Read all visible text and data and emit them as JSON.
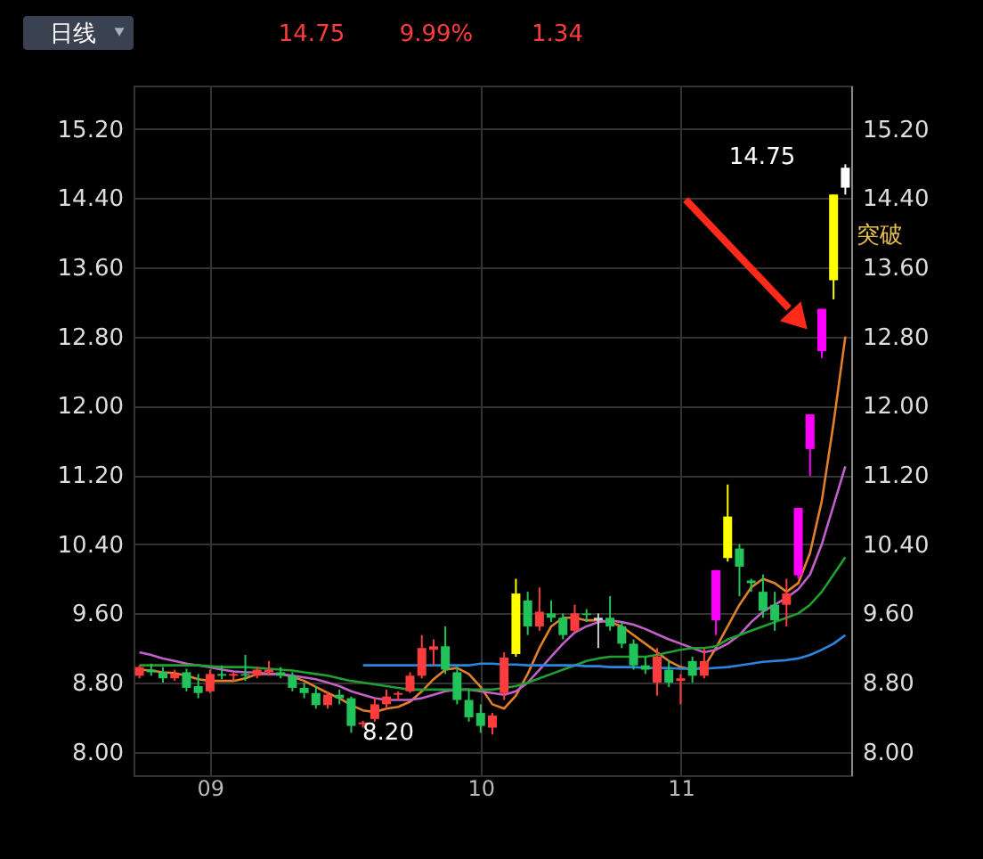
{
  "chart_data": {
    "type": "candlestick",
    "categories": [
      null,
      null,
      null,
      null,
      null,
      null,
      "09",
      null,
      null,
      null,
      null,
      null,
      null,
      null,
      null,
      null,
      null,
      null,
      null,
      null,
      null,
      null,
      null,
      null,
      null,
      null,
      null,
      null,
      null,
      "10",
      null,
      null,
      null,
      null,
      null,
      null,
      null,
      null,
      null,
      null,
      null,
      null,
      null,
      null,
      null,
      null,
      "11",
      null,
      null,
      null,
      null,
      null,
      null,
      null,
      null,
      null,
      null,
      null,
      null,
      null,
      null
    ],
    "ohlc": [
      [
        8.88,
        9.0,
        8.85,
        8.98
      ],
      [
        8.95,
        9.02,
        8.88,
        8.92
      ],
      [
        8.92,
        8.98,
        8.8,
        8.85
      ],
      [
        8.85,
        8.95,
        8.82,
        8.9
      ],
      [
        8.92,
        8.96,
        8.7,
        8.74
      ],
      [
        8.76,
        8.9,
        8.62,
        8.68
      ],
      [
        8.7,
        8.95,
        8.68,
        8.9
      ],
      [
        8.9,
        9.0,
        8.84,
        8.88
      ],
      [
        8.88,
        8.92,
        8.82,
        8.9
      ],
      [
        8.9,
        9.12,
        8.82,
        8.88
      ],
      [
        8.88,
        8.98,
        8.85,
        8.95
      ],
      [
        8.95,
        9.05,
        8.88,
        8.92
      ],
      [
        8.92,
        8.98,
        8.85,
        8.88
      ],
      [
        8.88,
        8.92,
        8.7,
        8.74
      ],
      [
        8.74,
        8.8,
        8.62,
        8.68
      ],
      [
        8.68,
        8.76,
        8.5,
        8.54
      ],
      [
        8.54,
        8.7,
        8.5,
        8.66
      ],
      [
        8.66,
        8.72,
        8.55,
        8.62
      ],
      [
        8.62,
        8.64,
        8.22,
        8.3
      ],
      [
        8.32,
        8.36,
        8.28,
        8.34
      ],
      [
        8.38,
        8.62,
        8.35,
        8.55
      ],
      [
        8.55,
        8.72,
        8.5,
        8.64
      ],
      [
        8.66,
        8.7,
        8.6,
        8.68
      ],
      [
        8.7,
        8.92,
        8.68,
        8.88
      ],
      [
        8.88,
        9.35,
        8.85,
        9.2
      ],
      [
        9.18,
        9.3,
        9.0,
        9.22
      ],
      [
        9.22,
        9.45,
        8.9,
        8.95
      ],
      [
        8.92,
        8.98,
        8.55,
        8.6
      ],
      [
        8.6,
        8.72,
        8.35,
        8.4
      ],
      [
        8.45,
        8.55,
        8.22,
        8.3
      ],
      [
        8.28,
        8.45,
        8.2,
        8.42
      ],
      [
        8.68,
        9.15,
        8.6,
        9.09
      ],
      [
        9.13,
        10.0,
        9.1,
        9.83
      ],
      [
        9.75,
        9.85,
        9.35,
        9.45
      ],
      [
        9.45,
        9.9,
        9.4,
        9.62
      ],
      [
        9.6,
        9.75,
        9.5,
        9.55
      ],
      [
        9.55,
        9.6,
        9.3,
        9.35
      ],
      [
        9.4,
        9.7,
        9.38,
        9.6
      ],
      [
        9.6,
        9.65,
        9.5,
        9.58
      ],
      [
        9.55,
        9.6,
        9.2,
        9.52
      ],
      [
        9.55,
        9.8,
        9.4,
        9.45
      ],
      [
        9.45,
        9.5,
        9.2,
        9.25
      ],
      [
        9.25,
        9.3,
        8.95,
        9.0
      ],
      [
        9.0,
        9.1,
        8.9,
        8.95
      ],
      [
        8.8,
        9.2,
        8.65,
        9.1
      ],
      [
        8.95,
        9.05,
        8.75,
        8.8
      ],
      [
        8.82,
        8.9,
        8.55,
        8.85
      ],
      [
        9.05,
        9.1,
        8.8,
        8.88
      ],
      [
        8.88,
        9.2,
        8.85,
        9.05
      ],
      [
        9.52,
        10.1,
        9.35,
        10.1
      ],
      [
        10.24,
        11.09,
        10.2,
        10.72
      ],
      [
        10.35,
        10.4,
        9.8,
        10.14
      ],
      [
        9.98,
        10.0,
        9.85,
        9.95
      ],
      [
        9.85,
        10.05,
        9.55,
        9.63
      ],
      [
        9.7,
        9.85,
        9.4,
        9.52
      ],
      [
        9.7,
        10.0,
        9.45,
        9.83
      ],
      [
        10.04,
        10.82,
        10.0,
        10.82
      ],
      [
        11.5,
        11.9,
        11.19,
        11.9
      ],
      [
        12.63,
        13.12,
        12.55,
        13.12
      ],
      [
        13.45,
        14.44,
        13.23,
        14.44
      ],
      [
        14.52,
        14.79,
        14.44,
        14.75
      ]
    ],
    "colors": [
      "#ff3c3c",
      "#22c35a",
      "#22c35a",
      "#ff3c3c",
      "#22c35a",
      "#22c35a",
      "#ff3c3c",
      "#22c35a",
      "#ff3c3c",
      "#22c35a",
      "#ff3c3c",
      "#ff3c3c",
      "#22c35a",
      "#22c35a",
      "#22c35a",
      "#22c35a",
      "#ff3c3c",
      "#22c35a",
      "#22c35a",
      "#ff3c3c",
      "#ff3c3c",
      "#ff3c3c",
      "#ff3c3c",
      "#ff3c3c",
      "#ff3c3c",
      "#ff3c3c",
      "#22c35a",
      "#22c35a",
      "#22c35a",
      "#22c35a",
      "#ff3c3c",
      "#ff3c3c",
      "#ffff00",
      "#22c35a",
      "#ff3c3c",
      "#22c35a",
      "#22c35a",
      "#ff3c3c",
      "#22c35a",
      "#cccccc",
      "#22c35a",
      "#22c35a",
      "#22c35a",
      "#22c35a",
      "#ff3c3c",
      "#22c35a",
      "#ff3c3c",
      "#22c35a",
      "#ff3c3c",
      "#ff00ff",
      "#ffff00",
      "#22c35a",
      "#22c35a",
      "#22c35a",
      "#22c35a",
      "#ff3c3c",
      "#ff00ff",
      "#ff00ff",
      "#ff00ff",
      "#ffff00",
      "#ffffff"
    ],
    "series": [
      {
        "type": "line",
        "color": "#e0802a",
        "values": [
          8.95,
          8.94,
          8.92,
          8.91,
          8.88,
          8.84,
          8.82,
          8.82,
          8.82,
          8.85,
          8.9,
          8.9,
          8.9,
          8.87,
          8.82,
          8.75,
          8.68,
          8.62,
          8.54,
          8.48,
          8.46,
          8.5,
          8.52,
          8.58,
          8.7,
          8.84,
          8.95,
          8.97,
          8.9,
          8.75,
          8.55,
          8.5,
          8.65,
          8.9,
          9.2,
          9.45,
          9.55,
          9.55,
          9.52,
          9.52,
          9.5,
          9.45,
          9.35,
          9.25,
          9.15,
          9.05,
          8.98,
          8.95,
          8.98,
          9.2,
          9.45,
          9.7,
          9.9,
          10.0,
          9.95,
          9.85,
          9.95,
          10.3,
          10.9,
          11.8,
          12.8
        ]
      },
      {
        "type": "line",
        "color": "#c060c8",
        "values": [
          9.15,
          9.12,
          9.08,
          9.05,
          9.02,
          9.0,
          8.98,
          8.95,
          8.93,
          8.92,
          8.92,
          8.9,
          8.9,
          8.88,
          8.86,
          8.84,
          8.8,
          8.76,
          8.7,
          8.66,
          8.62,
          8.6,
          8.6,
          8.6,
          8.62,
          8.66,
          8.7,
          8.72,
          8.72,
          8.7,
          8.68,
          8.66,
          8.7,
          8.8,
          8.95,
          9.1,
          9.25,
          9.38,
          9.45,
          9.5,
          9.52,
          9.5,
          9.47,
          9.42,
          9.36,
          9.3,
          9.25,
          9.2,
          9.15,
          9.18,
          9.25,
          9.35,
          9.5,
          9.62,
          9.7,
          9.78,
          9.88,
          10.05,
          10.4,
          10.85,
          11.3
        ]
      },
      {
        "type": "line",
        "color": "#20a030",
        "values": [
          9.0,
          9.0,
          9.0,
          9.0,
          9.0,
          9.0,
          8.99,
          8.98,
          8.98,
          8.98,
          8.97,
          8.96,
          8.95,
          8.94,
          8.92,
          8.9,
          8.88,
          8.85,
          8.82,
          8.8,
          8.78,
          8.76,
          8.74,
          8.72,
          8.72,
          8.72,
          8.72,
          8.72,
          8.72,
          8.72,
          8.72,
          8.74,
          8.76,
          8.8,
          8.85,
          8.9,
          8.95,
          9.0,
          9.05,
          9.08,
          9.1,
          9.1,
          9.1,
          9.1,
          9.12,
          9.15,
          9.18,
          9.2,
          9.2,
          9.22,
          9.3,
          9.35,
          9.4,
          9.45,
          9.5,
          9.55,
          9.6,
          9.7,
          9.85,
          10.05,
          10.25
        ]
      },
      {
        "type": "line",
        "color": "#2a86e0",
        "values": [
          null,
          null,
          null,
          null,
          null,
          null,
          null,
          null,
          null,
          null,
          null,
          null,
          null,
          null,
          null,
          null,
          null,
          null,
          null,
          9.0,
          9.0,
          9.0,
          9.0,
          9.0,
          9.0,
          9.0,
          9.0,
          9.0,
          9.0,
          9.02,
          9.02,
          9.01,
          9.01,
          9.0,
          9.0,
          9.0,
          9.0,
          9.0,
          8.99,
          8.99,
          8.98,
          8.98,
          8.98,
          8.97,
          8.97,
          8.97,
          8.96,
          8.96,
          8.96,
          8.97,
          8.98,
          9.0,
          9.02,
          9.04,
          9.05,
          9.06,
          9.08,
          9.12,
          9.18,
          9.25,
          9.35
        ]
      }
    ],
    "ylim": [
      7.73,
      15.7
    ],
    "yticks": [
      {
        "value": 8,
        "label": "8.00"
      },
      {
        "value": 8.8,
        "label": "8.80"
      },
      {
        "value": 9.6,
        "label": "9.60"
      },
      {
        "value": 10.4,
        "label": "10.40"
      },
      {
        "value": 11.2,
        "label": "11.20"
      },
      {
        "value": 12,
        "label": "12.00"
      },
      {
        "value": 12.8,
        "label": "12.80"
      },
      {
        "value": 13.6,
        "label": "13.60"
      },
      {
        "value": 14.4,
        "label": "14.40"
      },
      {
        "value": 15.2,
        "label": "15.20"
      }
    ],
    "y2lim": [
      7.73,
      15.7
    ],
    "y2ticks": [
      {
        "value": 8,
        "label": "8.00"
      },
      {
        "value": 8.8,
        "label": "8.80"
      },
      {
        "value": 9.6,
        "label": "9.60"
      },
      {
        "value": 10.4,
        "label": "10.40"
      },
      {
        "value": 11.2,
        "label": "11.20"
      },
      {
        "value": 12,
        "label": "12.00"
      },
      {
        "value": 12.8,
        "label": "12.80"
      },
      {
        "value": 13.6,
        "label": "13.60"
      },
      {
        "value": 14.4,
        "label": "14.40"
      },
      {
        "value": 15.2,
        "label": "15.20"
      }
    ],
    "grid": true,
    "annotations": [
      "日线",
      "14.75",
      "9.99%",
      "1.34",
      "14.75",
      "8.20",
      "突破"
    ]
  }
}
